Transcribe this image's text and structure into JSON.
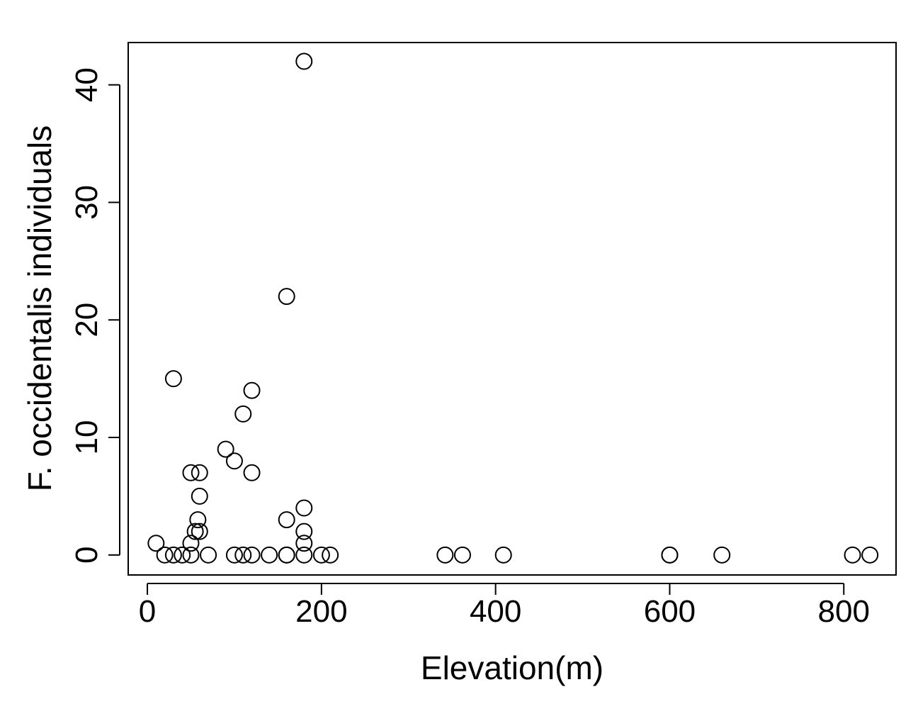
{
  "chart_data": {
    "type": "scatter",
    "title": "",
    "xlabel": "Elevation(m)",
    "ylabel": "F. occidentalis individuals",
    "xlim": [
      -22,
      860
    ],
    "ylim": [
      -1.7,
      43.6
    ],
    "xticks": [
      0,
      200,
      400,
      600,
      800
    ],
    "yticks": [
      0,
      10,
      20,
      30,
      40
    ],
    "xtick_labels": [
      "0",
      "200",
      "400",
      "600",
      "800"
    ],
    "ytick_labels": [
      "0",
      "10",
      "20",
      "30",
      "40"
    ],
    "marker": "open-circle",
    "grid": false,
    "points": [
      {
        "x": 10,
        "y": 1
      },
      {
        "x": 20,
        "y": 0
      },
      {
        "x": 30,
        "y": 0
      },
      {
        "x": 30,
        "y": 15
      },
      {
        "x": 40,
        "y": 0
      },
      {
        "x": 50,
        "y": 0
      },
      {
        "x": 50,
        "y": 1
      },
      {
        "x": 50,
        "y": 7
      },
      {
        "x": 55,
        "y": 2
      },
      {
        "x": 58,
        "y": 3
      },
      {
        "x": 60,
        "y": 2
      },
      {
        "x": 60,
        "y": 5
      },
      {
        "x": 60,
        "y": 7
      },
      {
        "x": 70,
        "y": 0
      },
      {
        "x": 90,
        "y": 9
      },
      {
        "x": 100,
        "y": 0
      },
      {
        "x": 100,
        "y": 8
      },
      {
        "x": 110,
        "y": 0
      },
      {
        "x": 110,
        "y": 12
      },
      {
        "x": 120,
        "y": 0
      },
      {
        "x": 120,
        "y": 7
      },
      {
        "x": 120,
        "y": 14
      },
      {
        "x": 140,
        "y": 0
      },
      {
        "x": 160,
        "y": 0
      },
      {
        "x": 160,
        "y": 0
      },
      {
        "x": 160,
        "y": 3
      },
      {
        "x": 160,
        "y": 22
      },
      {
        "x": 180,
        "y": 0
      },
      {
        "x": 180,
        "y": 1
      },
      {
        "x": 180,
        "y": 2
      },
      {
        "x": 180,
        "y": 4
      },
      {
        "x": 180,
        "y": 42
      },
      {
        "x": 200,
        "y": 0
      },
      {
        "x": 210,
        "y": 0
      },
      {
        "x": 342,
        "y": 0
      },
      {
        "x": 362,
        "y": 0
      },
      {
        "x": 409,
        "y": 0
      },
      {
        "x": 600,
        "y": 0
      },
      {
        "x": 600,
        "y": 0
      },
      {
        "x": 660,
        "y": 0
      },
      {
        "x": 810,
        "y": 0
      },
      {
        "x": 830,
        "y": 0
      }
    ]
  }
}
